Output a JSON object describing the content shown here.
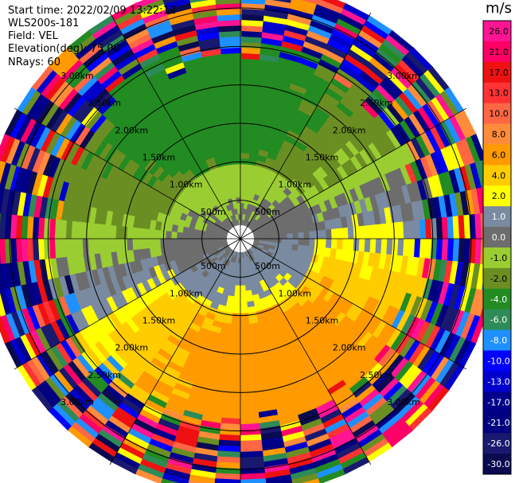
{
  "header": {
    "start_time": "Start time: 2022/02/09 13:22:12",
    "instrument": "WLS200s-181",
    "field": "Field: VEL",
    "elevation": "Elevation(deg): 75.00",
    "nrays": "NRays: 60"
  },
  "colorbar": {
    "unit": "m/s",
    "levels": [
      {
        "label": "26.0",
        "color": "#ff1493"
      },
      {
        "label": "21.0",
        "color": "#ff0066"
      },
      {
        "label": "17.0",
        "color": "#ee1111"
      },
      {
        "label": "13.0",
        "color": "#ff3333"
      },
      {
        "label": "10.0",
        "color": "#ff6644"
      },
      {
        "label": "8.0",
        "color": "#ff8c3a"
      },
      {
        "label": "6.0",
        "color": "#ff9a00"
      },
      {
        "label": "4.0",
        "color": "#ffcc00"
      },
      {
        "label": "2.0",
        "color": "#ffff00"
      },
      {
        "label": "1.0",
        "color": "#7a8aa0"
      },
      {
        "label": "0.0",
        "color": "#6d6d6d"
      },
      {
        "label": "-1.0",
        "color": "#9acd32"
      },
      {
        "label": "-2.0",
        "color": "#6b8e23"
      },
      {
        "label": "-4.0",
        "color": "#228b22"
      },
      {
        "label": "-6.0",
        "color": "#2e8b57"
      },
      {
        "label": "-8.0",
        "color": "#1e90ff"
      },
      {
        "label": "-10.0",
        "color": "#0000ff"
      },
      {
        "label": "-13.0",
        "color": "#0000cd"
      },
      {
        "label": "-17.0",
        "color": "#00008b"
      },
      {
        "label": "-21.0",
        "color": "#000080"
      },
      {
        "label": "-26.0",
        "color": "#191970"
      },
      {
        "label": "-30.0",
        "color": "#0a0a50"
      }
    ]
  },
  "chart_data": {
    "type": "heatmap",
    "subtype": "polar PPI",
    "field": "VEL",
    "units": "m/s",
    "elevation_deg": 75.0,
    "nrays": 60,
    "range_rings_km": [
      0.5,
      1.0,
      1.5,
      2.0,
      2.5,
      3.0
    ],
    "range_ring_labels": [
      "500m",
      "1.00km",
      "1.50km",
      "2.00km",
      "2.50km",
      "3.00km"
    ],
    "max_range_km": 3.35,
    "pattern": "near-zero (grey) velocities within ~1.2km; positive (yellow/orange) toward south and east; negative (olive/green) toward north; noisy mixed values beyond ~2.6km"
  }
}
